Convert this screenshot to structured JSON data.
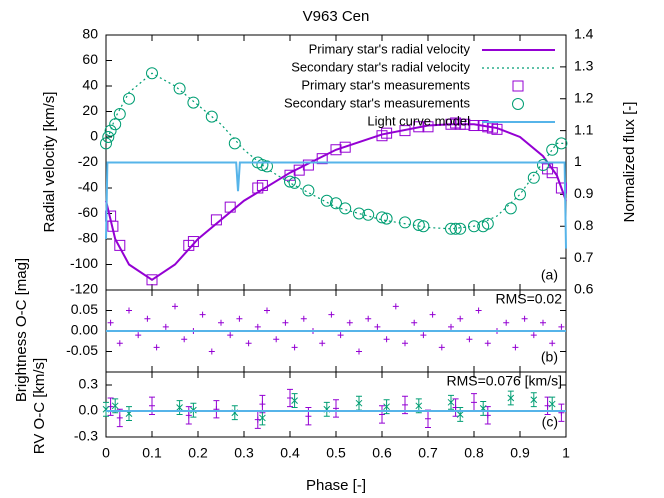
{
  "chart_data": [
    {
      "type": "line",
      "title": "V963 Cen",
      "ylabel": "Radial velocity [km/s]",
      "y2label": "Normalized flux [-]",
      "panel_label": "(a)",
      "xlim": [
        0,
        1
      ],
      "ylim": [
        -120,
        80
      ],
      "yticks": [
        -120,
        -100,
        -80,
        -60,
        -40,
        -20,
        0,
        20,
        40,
        60,
        80
      ],
      "y2lim": [
        0.6,
        1.4
      ],
      "y2ticks": [
        0.6,
        0.7,
        0.8,
        0.9,
        1,
        1.1,
        1.2,
        1.3,
        1.4
      ],
      "legend": "top right",
      "series": [
        {
          "name": "Primary star's radial velocity",
          "color": "#9400d3",
          "style": "solid",
          "x": [
            0,
            0.02,
            0.05,
            0.1,
            0.15,
            0.2,
            0.3,
            0.4,
            0.5,
            0.6,
            0.7,
            0.75,
            0.8,
            0.85,
            0.9,
            0.95,
            0.98,
            1
          ],
          "values": [
            -50,
            -80,
            -100,
            -112,
            -100,
            -80,
            -50,
            -28,
            -10,
            2,
            9,
            10,
            10,
            7,
            0,
            -15,
            -30,
            -50
          ]
        },
        {
          "name": "Secondary star's radial velocity",
          "color": "#009e73",
          "style": "dotted",
          "x": [
            0,
            0.02,
            0.05,
            0.1,
            0.15,
            0.2,
            0.25,
            0.3,
            0.35,
            0.4,
            0.5,
            0.6,
            0.7,
            0.75,
            0.8,
            0.85,
            0.9,
            0.95,
            0.98,
            1
          ],
          "values": [
            -5,
            15,
            35,
            50,
            40,
            25,
            10,
            -10,
            -25,
            -36,
            -55,
            -65,
            -71,
            -72,
            -70,
            -62,
            -45,
            -20,
            -5,
            -5
          ]
        },
        {
          "name": "Primary star's measurements",
          "color": "#9400d3",
          "marker": "square",
          "x": [
            0.01,
            0.015,
            0.03,
            0.1,
            0.18,
            0.19,
            0.24,
            0.27,
            0.33,
            0.34,
            0.4,
            0.42,
            0.44,
            0.47,
            0.5,
            0.52,
            0.6,
            0.61,
            0.65,
            0.68,
            0.7,
            0.75,
            0.76,
            0.77,
            0.78,
            0.8,
            0.82,
            0.83,
            0.84,
            0.85,
            0.96,
            0.97,
            0.99
          ],
          "values": [
            -62,
            -70,
            -85,
            -112,
            -85,
            -82,
            -65,
            -55,
            -40,
            -38,
            -30,
            -26,
            -22,
            -17,
            -10,
            -8,
            1,
            3,
            5,
            8,
            8,
            10,
            11,
            10,
            10,
            9,
            9,
            8,
            7,
            6,
            -25,
            -28,
            -40
          ]
        },
        {
          "name": "Secondary star's measurements",
          "color": "#009e73",
          "marker": "circle",
          "x": [
            0,
            0.005,
            0.01,
            0.02,
            0.03,
            0.05,
            0.1,
            0.16,
            0.19,
            0.23,
            0.28,
            0.33,
            0.34,
            0.35,
            0.4,
            0.41,
            0.44,
            0.48,
            0.5,
            0.52,
            0.55,
            0.57,
            0.6,
            0.61,
            0.65,
            0.68,
            0.69,
            0.75,
            0.76,
            0.77,
            0.8,
            0.82,
            0.83,
            0.88,
            0.9,
            0.93,
            0.95,
            0.97,
            0.99
          ],
          "values": [
            -5,
            0,
            5,
            10,
            18,
            30,
            50,
            38,
            27,
            16,
            -5,
            -20,
            -22,
            -23,
            -35,
            -36,
            -42,
            -50,
            -52,
            -56,
            -60,
            -61,
            -63,
            -64,
            -67,
            -69,
            -70,
            -72,
            -72,
            -72,
            -70,
            -70,
            -68,
            -56,
            -45,
            -32,
            -22,
            -10,
            -5
          ]
        },
        {
          "name": "Light curve model",
          "color": "#56b4e9",
          "style": "solid",
          "axis": "y2",
          "x": [
            0,
            0.003,
            0.275,
            0.283,
            0.287,
            0.291,
            0.299,
            0.997,
            1
          ],
          "values": [
            0.76,
            1,
            1,
            1,
            0.91,
            1,
            1,
            1,
            0.73
          ]
        }
      ]
    },
    {
      "type": "scatter",
      "ylabel": "Brightness O-C [mag]",
      "panel_label": "(b)",
      "annotation": "RMS=0.02",
      "xlim": [
        0,
        1
      ],
      "ylim": [
        -0.1,
        0.1
      ],
      "yticks": [
        -0.05,
        {
          "value": 0,
          "label": "0.00"
        },
        0.05
      ],
      "series": [
        {
          "color": "#9400d3",
          "marker": "plus",
          "x": [
            0.01,
            0.03,
            0.05,
            0.07,
            0.09,
            0.11,
            0.13,
            0.15,
            0.17,
            0.19,
            0.21,
            0.23,
            0.25,
            0.27,
            0.29,
            0.31,
            0.33,
            0.35,
            0.37,
            0.39,
            0.41,
            0.43,
            0.45,
            0.47,
            0.49,
            0.51,
            0.53,
            0.55,
            0.57,
            0.59,
            0.61,
            0.63,
            0.65,
            0.67,
            0.69,
            0.71,
            0.73,
            0.75,
            0.77,
            0.79,
            0.81,
            0.83,
            0.85,
            0.87,
            0.89,
            0.91,
            0.93,
            0.95,
            0.97,
            0.99
          ],
          "values": [
            0.02,
            -0.03,
            0.05,
            -0.01,
            0.03,
            -0.04,
            0.01,
            0.06,
            -0.02,
            0,
            0.04,
            -0.05,
            0.02,
            -0.01,
            0.03,
            -0.03,
            0.01,
            0.05,
            -0.02,
            0.02,
            -0.04,
            0.03,
            0,
            -0.03,
            0.04,
            -0.01,
            0.02,
            -0.05,
            0.03,
            0.01,
            -0.02,
            0.06,
            -0.03,
            0.02,
            -0.01,
            0.04,
            -0.04,
            0.01,
            0.03,
            -0.02,
            0.05,
            -0.03,
            0,
            0.02,
            -0.04,
            0.03,
            -0.01,
            0.02,
            -0.03,
            0.01
          ]
        },
        {
          "color": "#56b4e9",
          "style": "solid",
          "x": [
            0,
            1
          ],
          "values": [
            0,
            0
          ]
        }
      ]
    },
    {
      "type": "errorbar",
      "ylabel": "RV O-C [km/s]",
      "xlabel": "Phase [-]",
      "panel_label": "(c)",
      "annotation": "RMS=0.076 [km/s]",
      "xlim": [
        0,
        1
      ],
      "ylim": [
        -0.3,
        0.45
      ],
      "yticks": [
        -0.3,
        {
          "value": 0,
          "label": "0.0"
        },
        0.3
      ],
      "xticks": [
        0,
        0.1,
        0.2,
        0.3,
        0.4,
        0.5,
        0.6,
        0.7,
        0.8,
        0.9,
        1
      ],
      "series": [
        {
          "color": "#9400d3",
          "marker": "plus",
          "x": [
            0.01,
            0.03,
            0.1,
            0.18,
            0.24,
            0.33,
            0.34,
            0.4,
            0.44,
            0.5,
            0.6,
            0.65,
            0.7,
            0.76,
            0.8,
            0.83,
            0.96,
            0.99
          ],
          "values": [
            0.05,
            -0.08,
            0.06,
            -0.05,
            0.02,
            -0.1,
            0.08,
            0.15,
            -0.06,
            0.03,
            -0.04,
            0.07,
            -0.09,
            0.04,
            0.1,
            -0.05,
            0.06,
            -0.02
          ],
          "errors": [
            0.1,
            0.1,
            0.1,
            0.1,
            0.1,
            0.1,
            0.1,
            0.1,
            0.1,
            0.1,
            0.1,
            0.1,
            0.1,
            0.1,
            0.1,
            0.1,
            0.1,
            0.1
          ]
        },
        {
          "color": "#009e73",
          "marker": "cross",
          "x": [
            0,
            0.02,
            0.05,
            0.16,
            0.19,
            0.28,
            0.34,
            0.41,
            0.48,
            0.55,
            0.61,
            0.68,
            0.75,
            0.77,
            0.82,
            0.88,
            0.93,
            0.97
          ],
          "values": [
            0.02,
            0.06,
            -0.03,
            0.04,
            0.01,
            -0.02,
            -0.08,
            0.12,
            0.02,
            0.09,
            0.05,
            0.06,
            0.1,
            -0.04,
            0.03,
            0.15,
            0.13,
            0.08
          ],
          "errors": [
            0.08,
            0.08,
            0.08,
            0.08,
            0.08,
            0.08,
            0.08,
            0.08,
            0.08,
            0.08,
            0.08,
            0.08,
            0.08,
            0.08,
            0.08,
            0.08,
            0.08,
            0.08
          ]
        },
        {
          "color": "#56b4e9",
          "style": "solid",
          "x": [
            0,
            1
          ],
          "values": [
            0,
            0
          ]
        }
      ]
    }
  ]
}
